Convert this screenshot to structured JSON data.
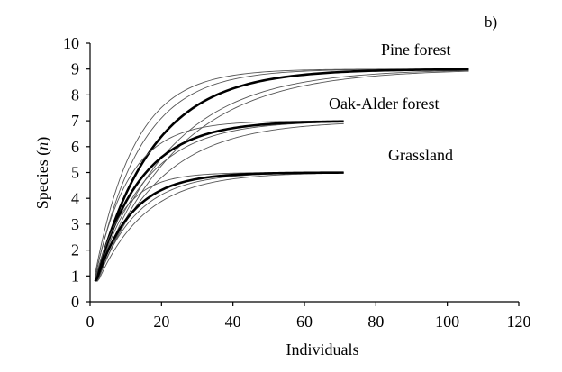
{
  "panel_label": "b)",
  "chart_data": {
    "type": "line",
    "xlabel": "Individuals",
    "ylabel_prefix": "Species (",
    "ylabel_var": "n",
    "ylabel_suffix": ")",
    "xlim": [
      0,
      120
    ],
    "ylim": [
      0,
      10
    ],
    "xticks": [
      "0",
      "20",
      "40",
      "60",
      "80",
      "100",
      "120"
    ],
    "yticks": [
      "0",
      "1",
      "2",
      "3",
      "4",
      "5",
      "6",
      "7",
      "8",
      "9",
      "10"
    ],
    "grid": false,
    "series": [
      {
        "name": "Pine forest",
        "x_start": 1.5,
        "x_end": 106,
        "mean": {
          "asymptote": 9,
          "rate": 0.062
        },
        "replicates": [
          {
            "asymptote": 9,
            "rate": 0.09
          },
          {
            "asymptote": 9,
            "rate": 0.078
          },
          {
            "asymptote": 9,
            "rate": 0.048
          },
          {
            "asymptote": 9,
            "rate": 0.044
          }
        ]
      },
      {
        "name": "Oak-Alder forest",
        "x_start": 1.5,
        "x_end": 71,
        "mean": {
          "asymptote": 7,
          "rate": 0.08
        },
        "replicates": [
          {
            "asymptote": 7,
            "rate": 0.105
          },
          {
            "asymptote": 7,
            "rate": 0.072
          },
          {
            "asymptote": 7,
            "rate": 0.058
          }
        ]
      },
      {
        "name": "Grassland",
        "x_start": 1.5,
        "x_end": 71,
        "mean": {
          "asymptote": 5,
          "rate": 0.1
        },
        "replicates": [
          {
            "asymptote": 5,
            "rate": 0.13
          },
          {
            "asymptote": 5,
            "rate": 0.088
          },
          {
            "asymptote": 5,
            "rate": 0.075
          }
        ]
      }
    ],
    "annotations": [
      "Pine forest",
      "Oak-Alder forest",
      "Grassland"
    ]
  }
}
